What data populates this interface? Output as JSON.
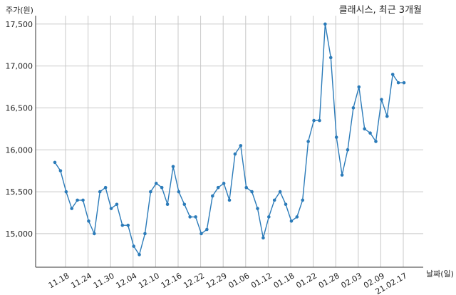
{
  "chart_data": {
    "type": "line",
    "title": "클래시스, 최근 3개월",
    "ylabel": "주가(원)",
    "xlabel": "날짜(일)",
    "ylim": [
      14600,
      17600
    ],
    "yticks": [
      15000,
      15500,
      16000,
      16500,
      17000,
      17500
    ],
    "ytick_labels": [
      "15,000",
      "15,500",
      "16,000",
      "16,500",
      "17,000",
      "17,500"
    ],
    "xtick_labels": [
      "11.18",
      "11.24",
      "11.30",
      "12.04",
      "12.10",
      "12.16",
      "12.22",
      "12.29",
      "01.06",
      "01.12",
      "01.18",
      "01.22",
      "01.28",
      "02.03",
      "02.09",
      "21.02.17"
    ],
    "grid": true,
    "line_color": "#2b7bb9",
    "series": [
      {
        "values": [
          15850,
          15750,
          15500,
          15300,
          15400,
          15400,
          15150,
          15000,
          15500,
          15550,
          15300,
          15350,
          15100,
          15100,
          14850,
          14750,
          15000,
          15500,
          15600,
          15550,
          15350,
          15800,
          15500,
          15350,
          15200,
          15200,
          15000,
          15050,
          15450,
          15550,
          15600,
          15400,
          15950,
          16050,
          15550,
          15500,
          15300,
          14950,
          15200,
          15400,
          15500,
          15350,
          15150,
          15200,
          15400,
          16100,
          16350,
          16350,
          17500,
          17100,
          16150,
          15700,
          16000,
          16500,
          16750,
          16250,
          16200,
          16100,
          16600,
          16400,
          16900,
          16800,
          16800
        ]
      }
    ]
  }
}
